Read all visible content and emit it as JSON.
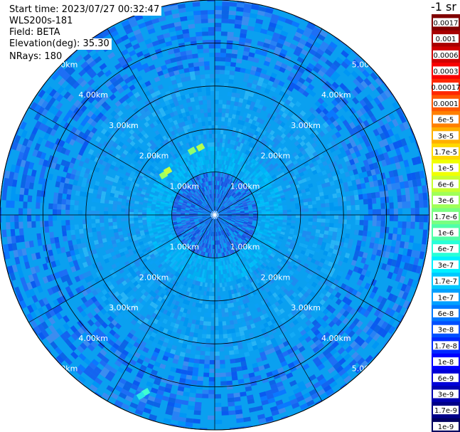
{
  "info": {
    "start_time": "Start time: 2023/07/27 00:32:47",
    "instrument": "WLS200s-181",
    "field": "Field: BETA",
    "elevation": "Elevation(deg): 35.30",
    "nrays": "NRays: 180"
  },
  "colorbar": {
    "unit_label": "-1 sr",
    "labels": [
      "0.0017",
      "0.001",
      "0.0006",
      "0.0003",
      "0.00017",
      "0.0001",
      "6e-5",
      "3e-5",
      "1.7e-5",
      "1e-5",
      "6e-6",
      "3e-6",
      "1.7e-6",
      "1e-6",
      "6e-7",
      "3e-7",
      "1.7e-7",
      "1e-7",
      "6e-8",
      "3e-8",
      "1.7e-8",
      "1e-8",
      "6e-9",
      "3e-9",
      "1.7e-9",
      "1e-9"
    ],
    "colors": [
      "#800000",
      "#a80000",
      "#d00000",
      "#f80000",
      "#ff2800",
      "#ff5800",
      "#ff8000",
      "#ffb000",
      "#ffd800",
      "#f0ff00",
      "#c8ff30",
      "#a0ff58",
      "#78ff80",
      "#50ffa8",
      "#28ffd8",
      "#00f0ff",
      "#00c8ff",
      "#00a0ff",
      "#0078ff",
      "#0050ff",
      "#0028ff",
      "#0000ff",
      "#0000d8",
      "#0000b0",
      "#000088",
      "#000060"
    ]
  },
  "chart_data": {
    "type": "heatmap",
    "title": "",
    "projection": "polar (PPI)",
    "field": "BETA",
    "elevation_deg": 35.3,
    "n_rays": 180,
    "range_ring_labels": [
      "1.00km",
      "2.00km",
      "3.00km",
      "4.00km",
      "5.00km"
    ],
    "range_rings_km": [
      1,
      2,
      3,
      4,
      5
    ],
    "max_range_km": 5.0,
    "spokes_deg": [
      0,
      30,
      60,
      90,
      120,
      150,
      180,
      210,
      240,
      270,
      300,
      330
    ],
    "color_scale": "log",
    "color_range": [
      1e-09,
      0.0017
    ],
    "typical_values": {
      "inner_core_under_1km": "1.7e-8",
      "1_to_2km": "1.7e-7",
      "2_to_4km": "1e-7",
      "outer_4_to_5km": "3e-8"
    }
  }
}
